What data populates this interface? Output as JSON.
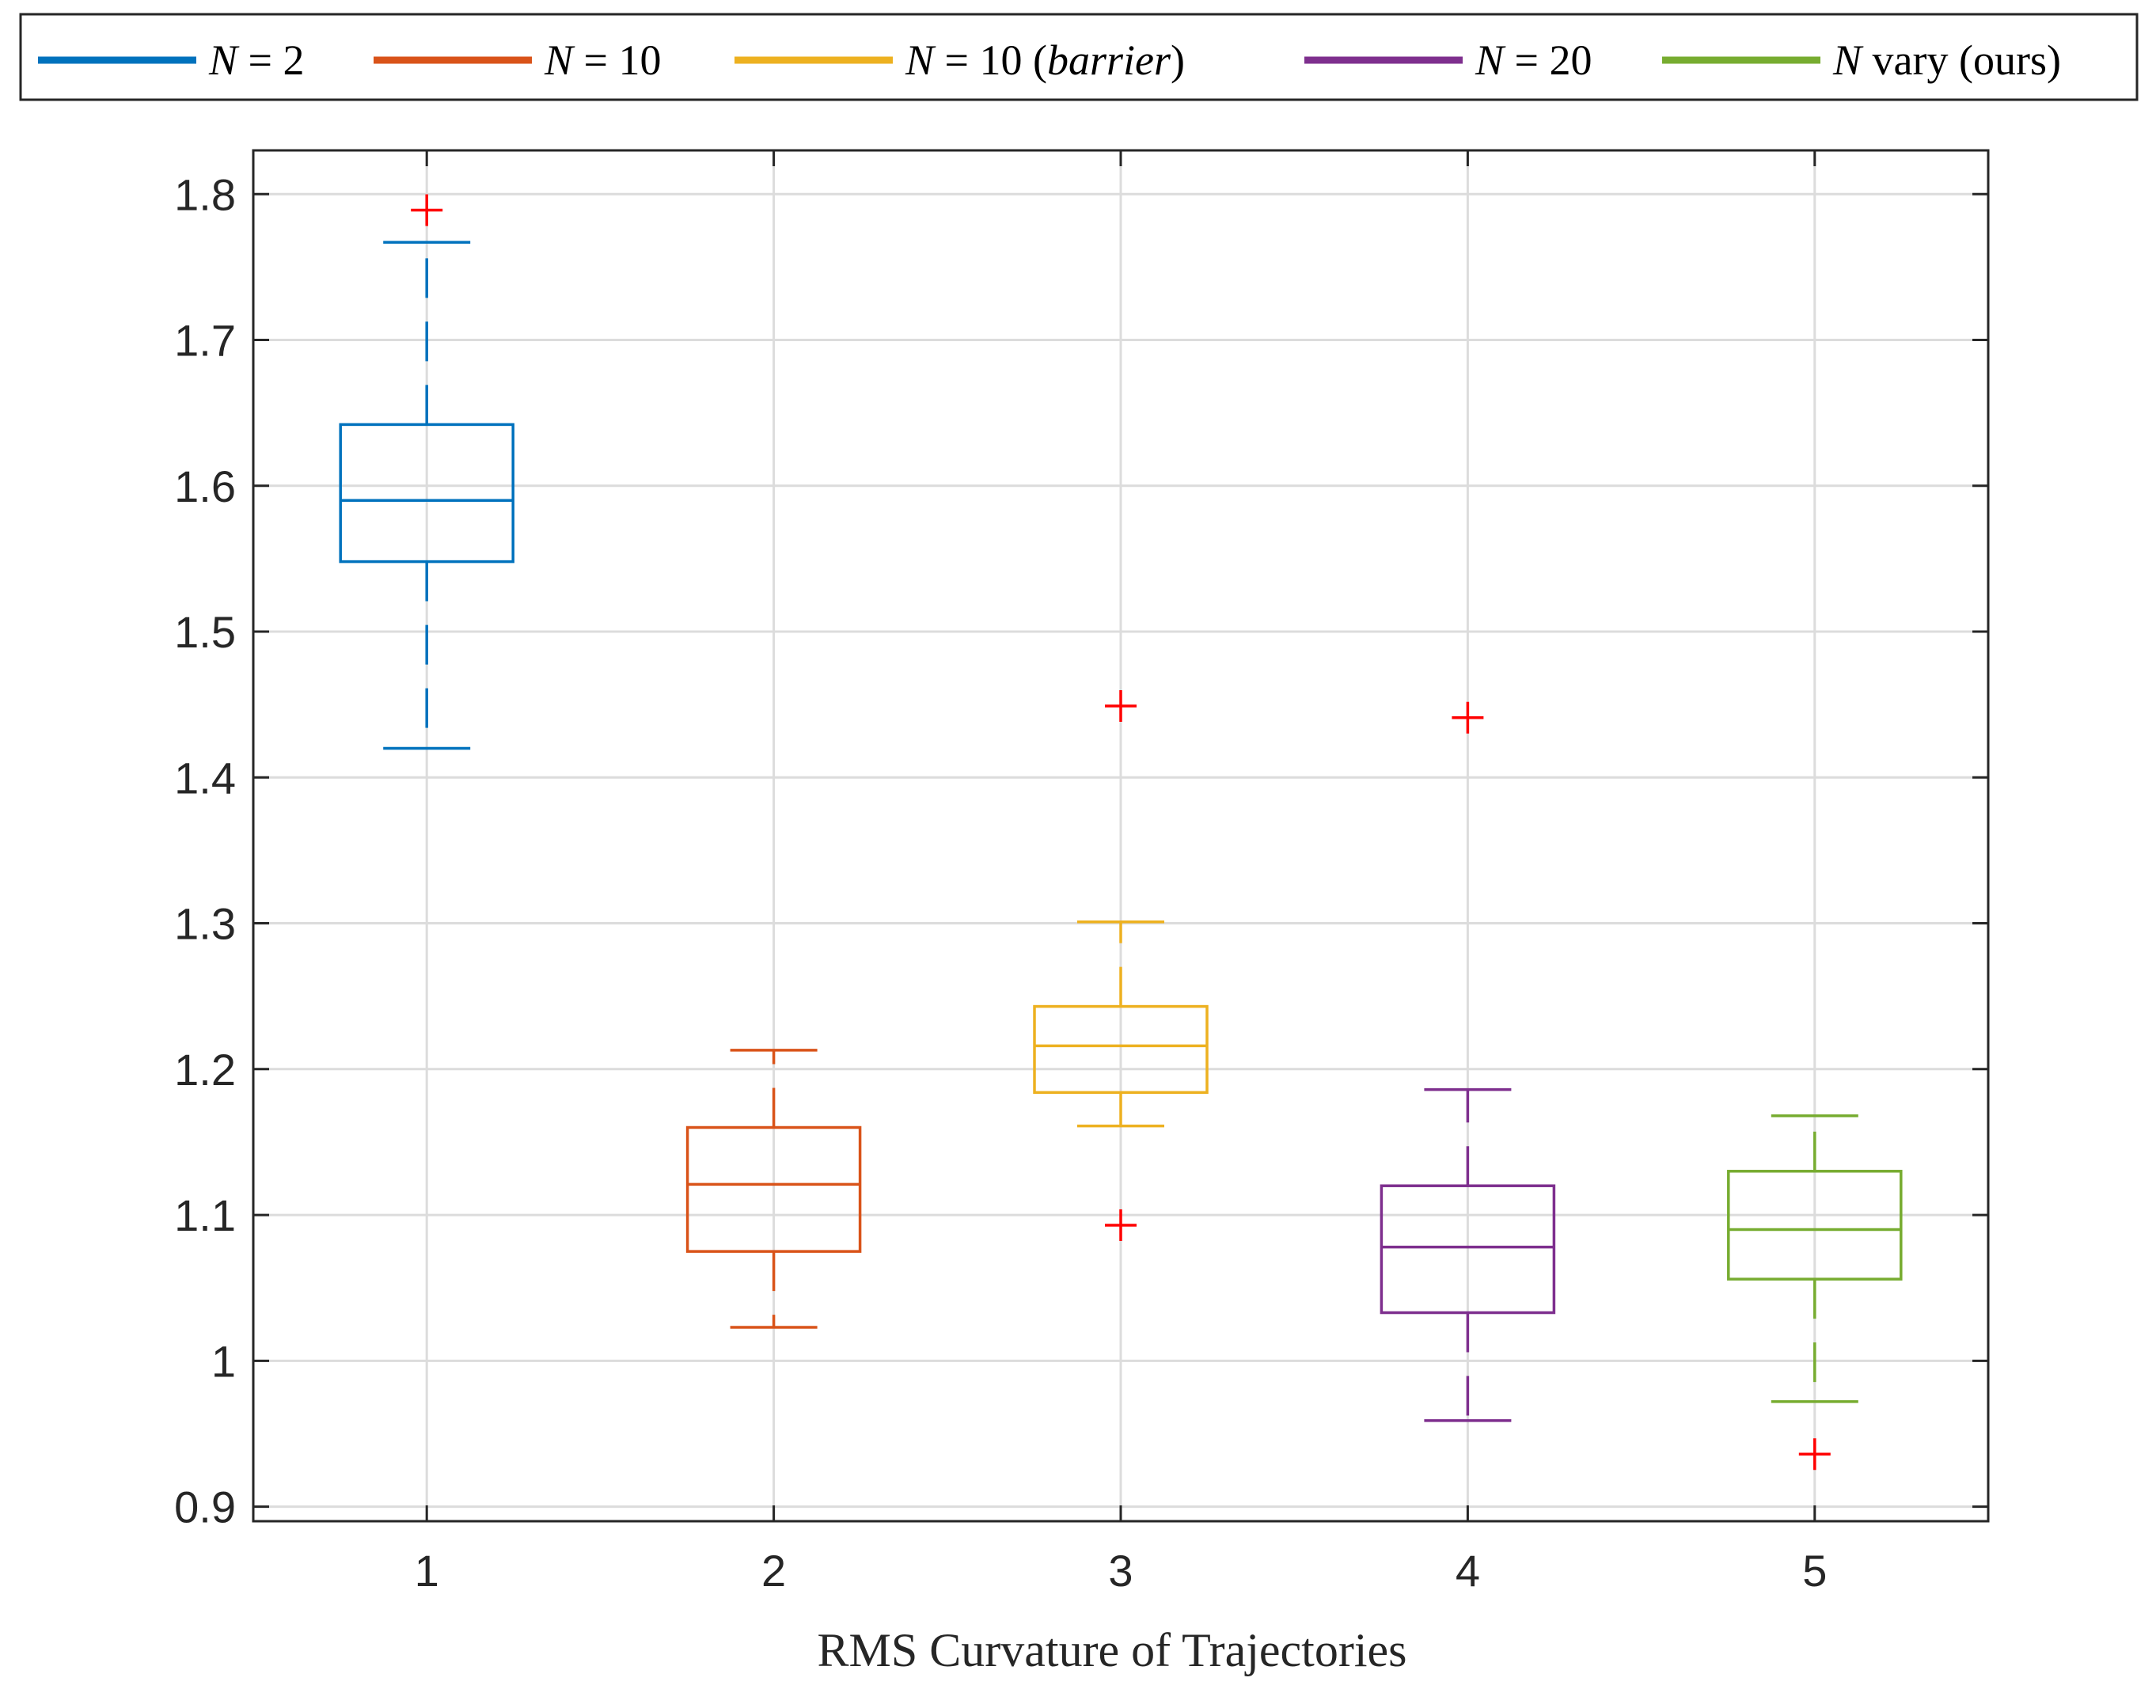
{
  "chart_data": {
    "type": "boxplot",
    "title": "",
    "xlabel": "RMS Curvature of Trajectories",
    "ylabel": "",
    "ylim": [
      0.89,
      1.83
    ],
    "xlim": [
      0.5,
      5.5
    ],
    "categories": [
      "1",
      "2",
      "3",
      "4",
      "5"
    ],
    "yticks": [
      0.9,
      1,
      1.1,
      1.2,
      1.3,
      1.4,
      1.5,
      1.6,
      1.7,
      1.8
    ],
    "ytick_labels": [
      "0.9",
      "1",
      "1.1",
      "1.2",
      "1.3",
      "1.4",
      "1.5",
      "1.6",
      "1.7",
      "1.8"
    ],
    "grid": true,
    "legend_position": "top, outside, horizontal",
    "series": [
      {
        "name": "N = 2",
        "legend_var": "N",
        "legend_rest": " = 2",
        "color": "#0072BD",
        "x": 1,
        "whisker_low": 1.42,
        "q1": 1.548,
        "median": 1.59,
        "q3": 1.642,
        "whisker_high": 1.767,
        "outliers": [
          1.789
        ]
      },
      {
        "name": "N = 10",
        "legend_var": "N",
        "legend_rest": " = 10",
        "color": "#D95319",
        "x": 2,
        "whisker_low": 1.023,
        "q1": 1.075,
        "median": 1.121,
        "q3": 1.16,
        "whisker_high": 1.213,
        "outliers": []
      },
      {
        "name": "N = 10 (barrier)",
        "legend_var": "N",
        "legend_rest": " = 10 (",
        "legend_italic": "barrier",
        "legend_tail": ")",
        "color": "#EDB120",
        "x": 3,
        "whisker_low": 1.161,
        "q1": 1.184,
        "median": 1.216,
        "q3": 1.243,
        "whisker_high": 1.301,
        "outliers": [
          1.449,
          1.093
        ]
      },
      {
        "name": "N = 20",
        "legend_var": "N",
        "legend_rest": " = 20",
        "color": "#7E2F8E",
        "x": 4,
        "whisker_low": 0.959,
        "q1": 1.033,
        "median": 1.078,
        "q3": 1.12,
        "whisker_high": 1.186,
        "outliers": [
          1.441
        ]
      },
      {
        "name": "N vary (ours)",
        "legend_var": "N",
        "legend_rest": " vary (ours)",
        "color": "#77AC30",
        "x": 5,
        "whisker_low": 0.972,
        "q1": 1.056,
        "median": 1.09,
        "q3": 1.13,
        "whisker_high": 1.168,
        "outliers": [
          0.936
        ]
      }
    ],
    "outlier_color": "#FF0000"
  }
}
